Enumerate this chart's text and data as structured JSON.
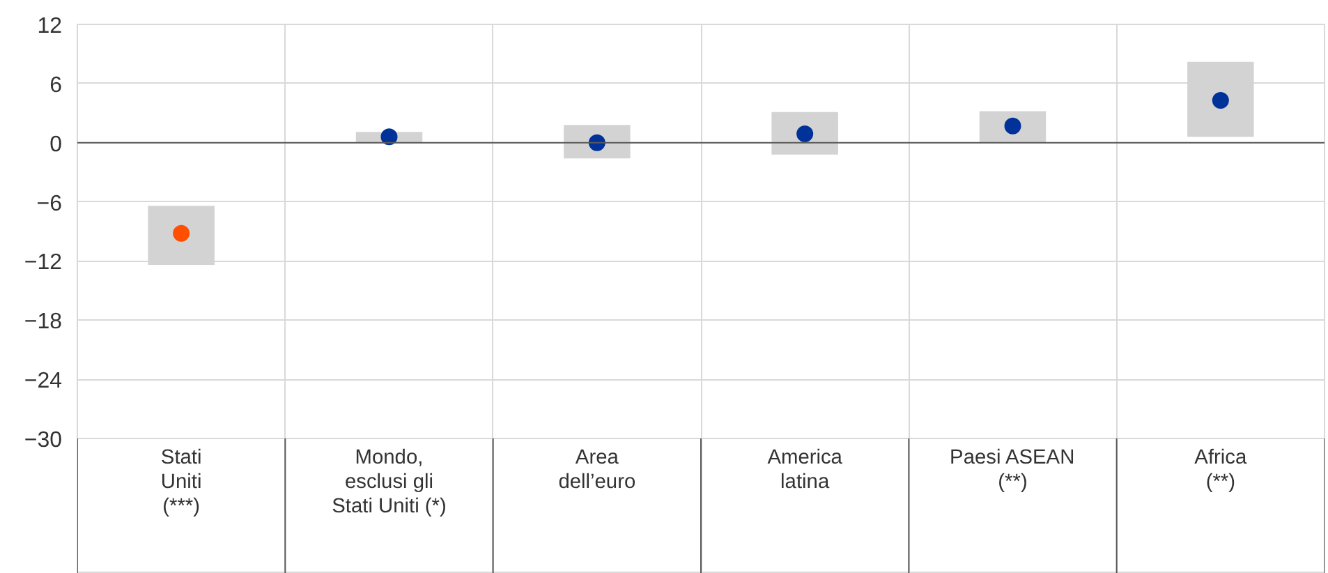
{
  "chart_data": {
    "type": "bar",
    "categories": [
      "Stati\nUniti\n(***)",
      "Mondo,\nesclusi gli\nStati Uniti (*)",
      "Area\ndell’euro",
      "America\nlatina",
      "Paesi ASEAN\n(**)",
      "Africa\n(**)"
    ],
    "series": [
      {
        "color": "#d3d3d3",
        "base": [
          -12.4,
          0,
          -1.6,
          -1.2,
          0,
          0.6
        ],
        "values": [
          6.0,
          1.1,
          3.4,
          4.3,
          3.2,
          7.6
        ]
      },
      {
        "type": "scatter",
        "colors": [
          "#ff4f00",
          "#003299",
          "#003299",
          "#003299",
          "#003299",
          "#003299"
        ],
        "values": [
          -9.2,
          0.6,
          0.0,
          0.9,
          1.7,
          4.3
        ]
      }
    ],
    "marker": "circle",
    "ylim": [
      -30,
      12
    ],
    "yticks": [
      -30,
      -24,
      -18,
      -12,
      -6,
      0,
      6,
      12
    ],
    "grid": true,
    "ref_lines": [
      {
        "axis": "y",
        "value": 0,
        "color": "#595959",
        "line_style": "solid"
      }
    ]
  }
}
